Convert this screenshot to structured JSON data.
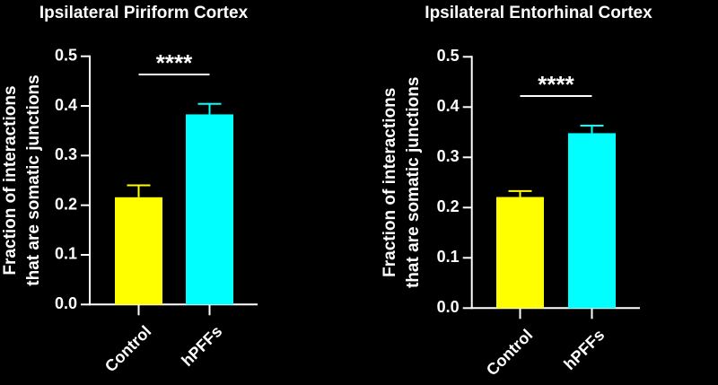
{
  "chart_data": [
    {
      "type": "bar",
      "title": "Ipsilateral Piriform Cortex",
      "ylabel": "Fraction of interactions\nthat are somatic junctions",
      "ylabel_lines": [
        "Fraction of interactions",
        "that are somatic junctions"
      ],
      "xlabel": "",
      "categories": [
        "Control",
        "hPFFs"
      ],
      "values": [
        0.216,
        0.383
      ],
      "error_upper": [
        0.24,
        0.404
      ],
      "colors": [
        "#ffff00",
        "#00ffff"
      ],
      "ylim": [
        0,
        0.5
      ],
      "yticks": [
        "0.0",
        "0.1",
        "0.2",
        "0.3",
        "0.4",
        "0.5"
      ],
      "significance": "****",
      "grid": false
    },
    {
      "type": "bar",
      "title": "Ipsilateral Entorhinal Cortex",
      "ylabel": "Fraction of interactions\nthat are somatic junctions",
      "ylabel_lines": [
        "Fraction of interactions",
        "that are somatic junctions"
      ],
      "xlabel": "",
      "categories": [
        "Control",
        "hPFFs"
      ],
      "values": [
        0.221,
        0.348
      ],
      "error_upper": [
        0.233,
        0.363
      ],
      "colors": [
        "#ffff00",
        "#00ffff"
      ],
      "ylim": [
        0,
        0.5
      ],
      "yticks": [
        "0.0",
        "0.1",
        "0.2",
        "0.3",
        "0.4",
        "0.5"
      ],
      "significance": "****",
      "grid": false
    }
  ]
}
